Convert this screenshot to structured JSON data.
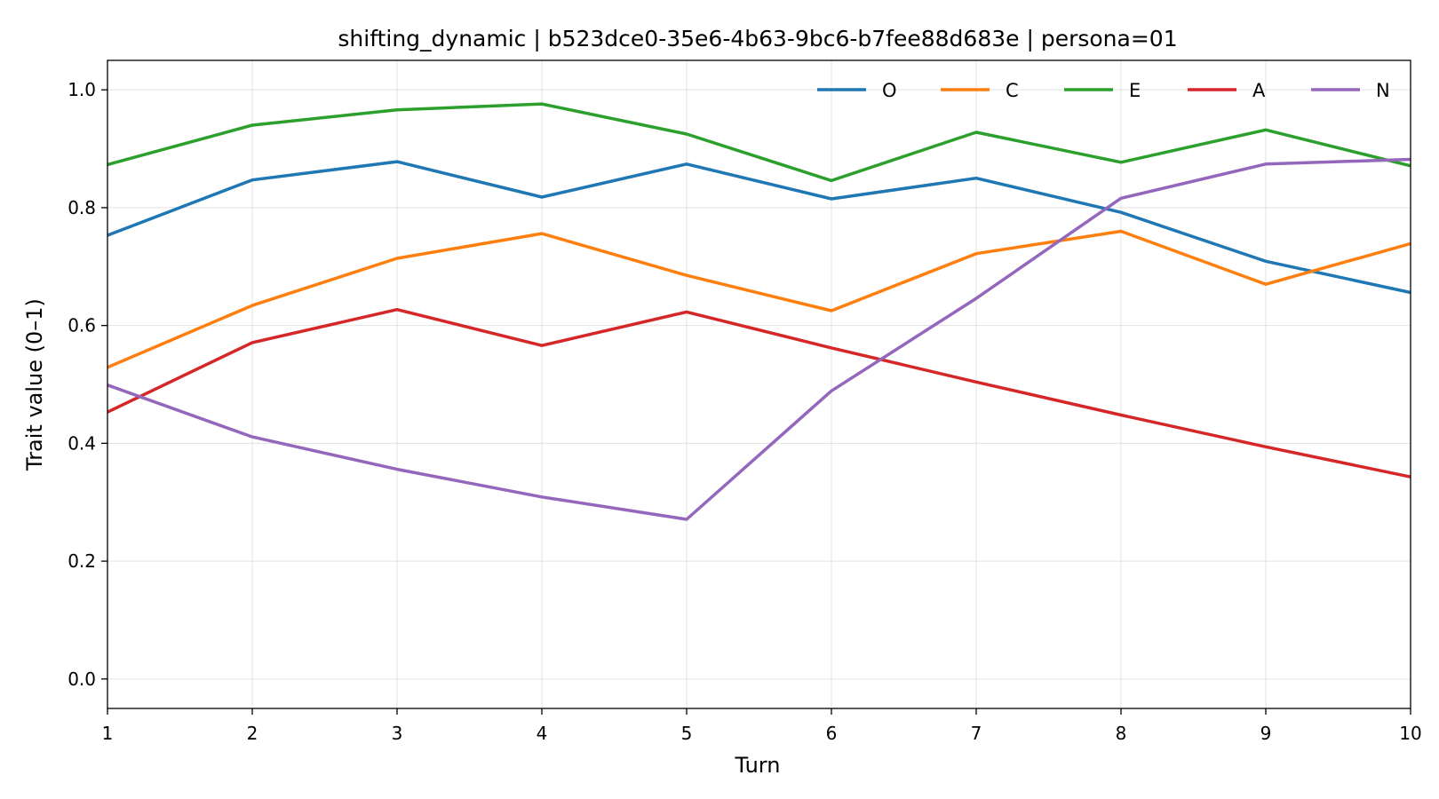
{
  "chart_data": {
    "type": "line",
    "title": "shifting_dynamic | b523dce0-35e6-4b63-9bc6-b7fee88d683e | persona=01",
    "xlabel": "Turn",
    "ylabel": "Trait value (0–1)",
    "x": [
      1,
      2,
      3,
      4,
      5,
      6,
      7,
      8,
      9,
      10
    ],
    "xlim": [
      1,
      10
    ],
    "ylim": [
      -0.05,
      1.05
    ],
    "xticks": [
      "1",
      "2",
      "3",
      "4",
      "5",
      "6",
      "7",
      "8",
      "9",
      "10"
    ],
    "yticks": [
      "0.0",
      "0.2",
      "0.4",
      "0.6",
      "0.8",
      "1.0"
    ],
    "grid": true,
    "legend_position": "top-right",
    "series": [
      {
        "name": "O",
        "color": "#1f77b4",
        "values": [
          0.753,
          0.847,
          0.878,
          0.818,
          0.874,
          0.815,
          0.85,
          0.792,
          0.709,
          0.656
        ]
      },
      {
        "name": "C",
        "color": "#ff7f0e",
        "values": [
          0.529,
          0.634,
          0.714,
          0.756,
          0.685,
          0.625,
          0.722,
          0.76,
          0.67,
          0.739
        ]
      },
      {
        "name": "E",
        "color": "#2ca02c",
        "values": [
          0.873,
          0.94,
          0.966,
          0.976,
          0.925,
          0.846,
          0.928,
          0.877,
          0.932,
          0.871
        ]
      },
      {
        "name": "A",
        "color": "#d62728",
        "values": [
          0.453,
          0.571,
          0.627,
          0.566,
          0.623,
          0.562,
          0.504,
          0.448,
          0.394,
          0.343
        ]
      },
      {
        "name": "N",
        "color": "#9467bd",
        "values": [
          0.499,
          0.411,
          0.356,
          0.309,
          0.271,
          0.489,
          0.646,
          0.816,
          0.874,
          0.882
        ]
      }
    ]
  }
}
